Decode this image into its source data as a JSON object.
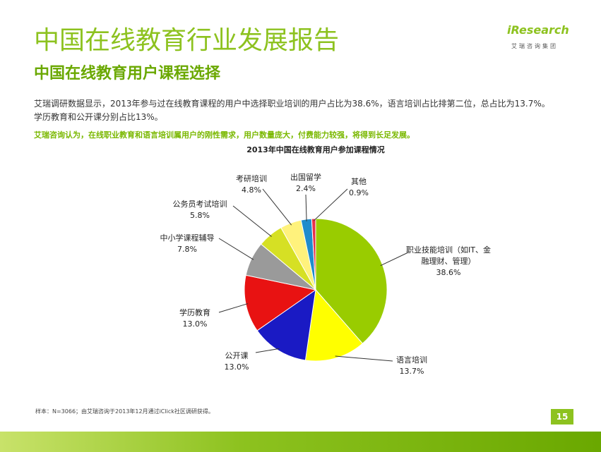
{
  "header": {
    "title": "中国在线教育行业发展报告",
    "subtitle": "中国在线教育用户课程选择",
    "logo": "iResearch",
    "logo_sub": "艾瑞咨询集团"
  },
  "body": {
    "paragraph": "艾瑞调研数据显示，2013年参与过在线教育课程的用户中选择职业培训的用户占比为38.6%，语言培训占比排第二位，总占比为13.7%。学历教育和公开课分别占比13%。",
    "highlight": "艾瑞咨询认为，在线职业教育和语言培训属用户的刚性需求，用户数量庞大，付费能力较强，将得到长足发展。"
  },
  "chart_data": {
    "type": "pie",
    "title": "2013年中国在线教育用户参加课程情况",
    "categories": [
      "职业技能培训（如IT、金融理财、管理）",
      "语言培训",
      "公开课",
      "学历教育",
      "中小学课程辅导",
      "公务员考试培训",
      "考研培训",
      "出国留学",
      "其他"
    ],
    "values": [
      38.6,
      13.7,
      13.0,
      13.0,
      7.8,
      5.8,
      4.8,
      2.4,
      0.9
    ],
    "value_labels": [
      "38.6%",
      "13.7%",
      "13.0%",
      "13.0%",
      "7.8%",
      "5.8%",
      "4.8%",
      "2.4%",
      "0.9%"
    ],
    "colors": [
      "#99cc00",
      "#ffff00",
      "#1a1ac4",
      "#e81212",
      "#9a9a9a",
      "#d6e024",
      "#fff27c",
      "#1f8ccc",
      "#e8304a"
    ]
  },
  "footer": {
    "note": "样本：N=3066；由艾瑞咨询于2013年12月通过iClick社区调研获得。",
    "page": "15"
  }
}
